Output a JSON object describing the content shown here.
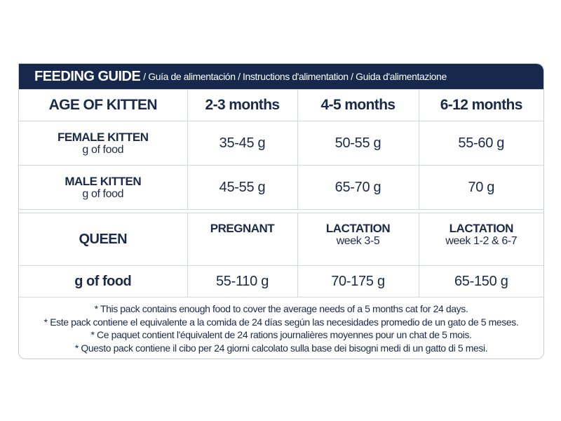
{
  "header": {
    "title_main": "FEEDING GUIDE",
    "title_sub": "/ Guía de alimentación / Instructions d'alimentation / Guida d'alimentazione",
    "background_color": "#16294d"
  },
  "kitten_table": {
    "corner_label": "AGE OF KITTEN",
    "columns": [
      "2-3 months",
      "4-5 months",
      "6-12 months"
    ],
    "rows": [
      {
        "label": "FEMALE KITTEN",
        "sublabel": "g of food",
        "values": [
          "35-45 g",
          "50-55 g",
          "55-60 g"
        ]
      },
      {
        "label": "MALE KITTEN",
        "sublabel": "g of food",
        "values": [
          "45-55 g",
          "65-70 g",
          "70 g"
        ]
      }
    ]
  },
  "queen_table": {
    "label": "QUEEN",
    "phases": [
      {
        "title": "PREGNANT",
        "sub": ""
      },
      {
        "title": "LACTATION",
        "sub": "week 3-5"
      },
      {
        "title": "LACTATION",
        "sub": "week 1-2 & 6-7"
      }
    ],
    "food_label": "g of food",
    "values": [
      "55-110 g",
      "70-175 g",
      "65-150 g"
    ]
  },
  "notes": [
    "* This pack contains enough food to cover the average needs of a 5 months cat for 24 days.",
    "* Este pack contiene el equivalente a la comida de 24 días según las necesidades promedio de un gato de 5 meses.",
    "* Ce paquet contient l'équivalent de 24 rations journalières moyennes pour un chat de 5 mois.",
    "* Questo pack contiene il cibo per 24 giorni calcolato sulla base dei bisogni medi di un gatto di 5 mesi."
  ]
}
